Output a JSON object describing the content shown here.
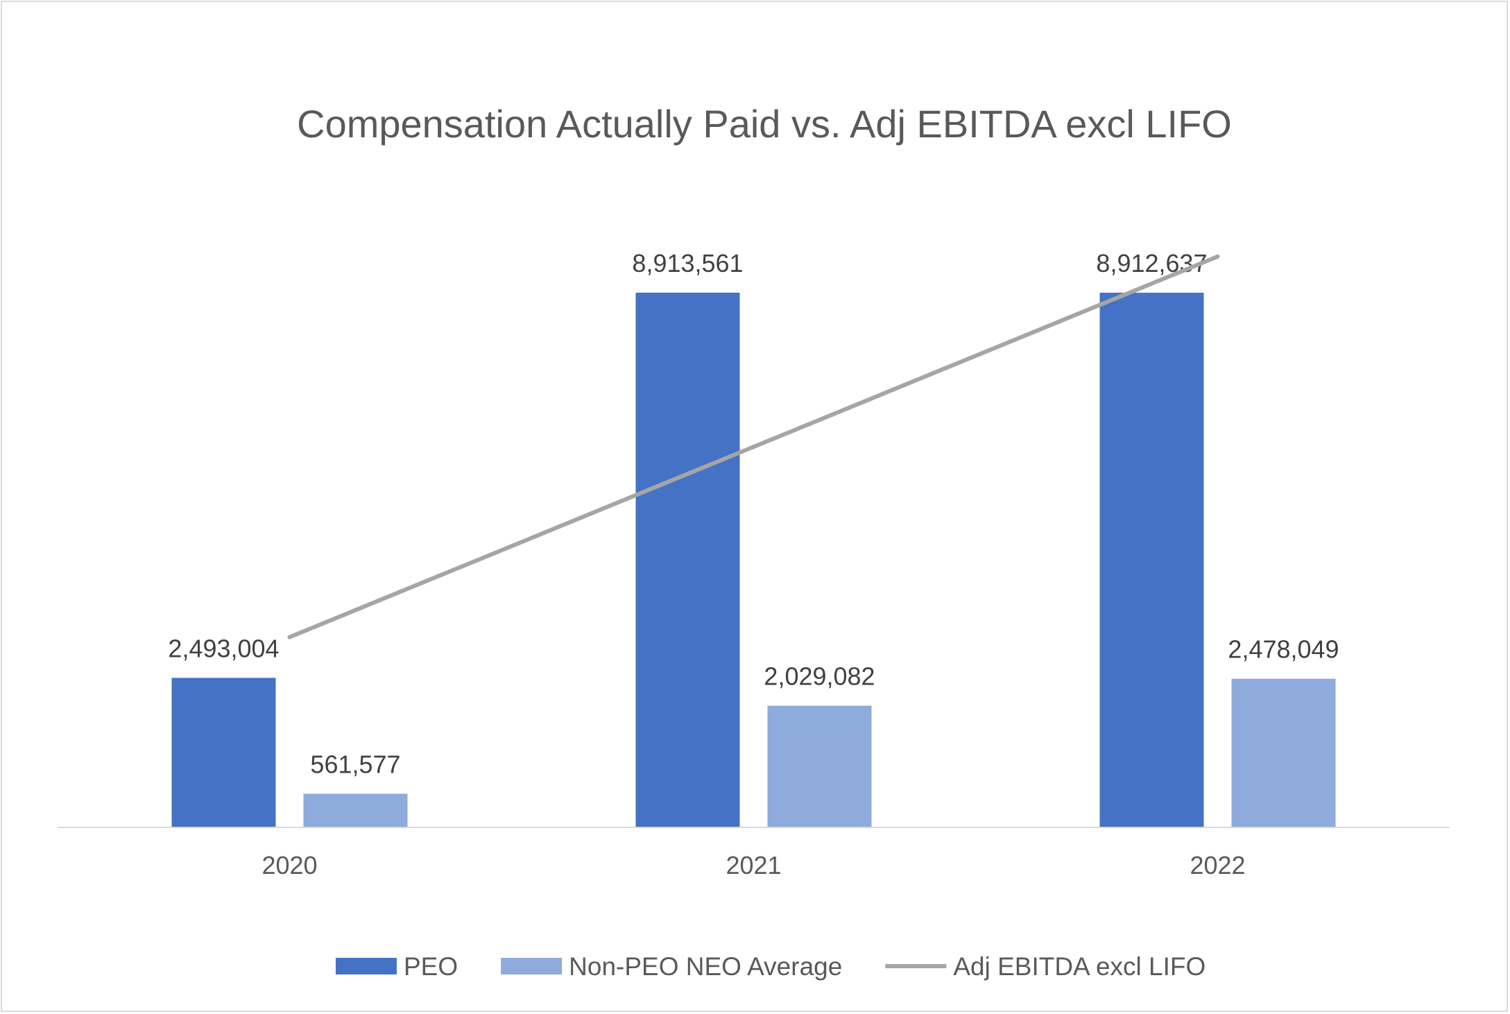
{
  "chart_data": {
    "type": "bar",
    "title": "Compensation Actually Paid vs. Adj EBITDA excl LIFO",
    "categories": [
      "2020",
      "2021",
      "2022"
    ],
    "series": [
      {
        "name": "PEO",
        "type": "bar",
        "color": "#4472c4",
        "values": [
          2493004,
          8913561,
          8912637
        ],
        "labels": [
          "2,493,004",
          "8,913,561",
          "8,912,637"
        ]
      },
      {
        "name": "Non-PEO NEO Average",
        "type": "bar",
        "color": "#8faadc",
        "values": [
          561577,
          2029082,
          2478049
        ],
        "labels": [
          "561,577",
          "2,029,082",
          "2,478,049"
        ]
      },
      {
        "name": "Adj EBITDA excl LIFO",
        "type": "line",
        "color": "#a5a5a5",
        "axis": "secondary",
        "values": [
          0.3,
          0.6,
          0.9
        ]
      }
    ],
    "ylim": [
      0,
      12000000
    ],
    "y2lim": [
      0,
      1.135
    ],
    "xlabel": "",
    "ylabel": "",
    "grid": false,
    "legend": "bottom"
  }
}
